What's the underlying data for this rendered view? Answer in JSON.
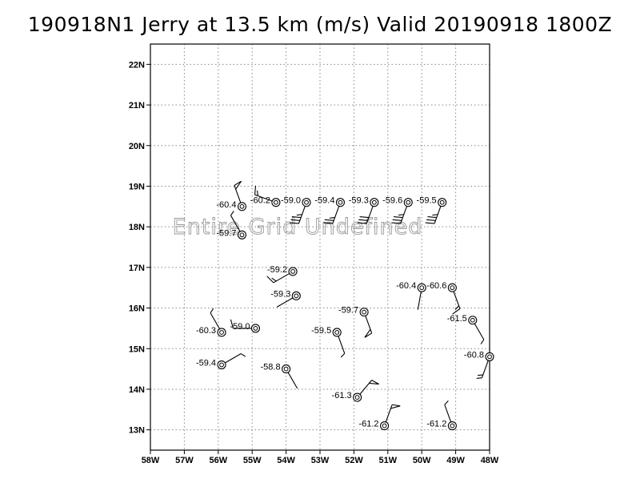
{
  "title": "190918N1 Jerry at 13.5 km (m/s) Valid 20190918 1800Z",
  "watermark": "Entire Grid Undefined",
  "chart_data": {
    "type": "scatter",
    "subtype": "wind-barb-station-plot",
    "x_ticks": [
      "58W",
      "57W",
      "56W",
      "55W",
      "54W",
      "53W",
      "52W",
      "51W",
      "50W",
      "49W",
      "48W"
    ],
    "y_ticks": [
      "13N",
      "14N",
      "15N",
      "16N",
      "17N",
      "18N",
      "19N",
      "20N",
      "21N",
      "22N"
    ],
    "xlim": [
      -58,
      -48
    ],
    "ylim": [
      12.5,
      22.5
    ],
    "grid": true,
    "points": [
      {
        "lon": -55.3,
        "lat": 18.5,
        "label": "-60.4",
        "dir": 340,
        "barbs": [
          "flag"
        ]
      },
      {
        "lon": -54.3,
        "lat": 18.6,
        "label": "-60.2",
        "dir": 290,
        "barbs": [
          "full",
          "half"
        ]
      },
      {
        "lon": -53.4,
        "lat": 18.6,
        "label": "-59.0",
        "dir": 200,
        "barbs": [
          "full",
          "full",
          "full",
          "half"
        ]
      },
      {
        "lon": -52.4,
        "lat": 18.6,
        "label": "-59.4",
        "dir": 200,
        "barbs": [
          "full",
          "full",
          "half"
        ]
      },
      {
        "lon": -51.4,
        "lat": 18.6,
        "label": "-59.3",
        "dir": 200,
        "barbs": [
          "full",
          "full",
          "full"
        ]
      },
      {
        "lon": -50.4,
        "lat": 18.6,
        "label": "-59.6",
        "dir": 200,
        "barbs": [
          "full",
          "full",
          "full",
          "half"
        ]
      },
      {
        "lon": -49.4,
        "lat": 18.6,
        "label": "-59.5",
        "dir": 200,
        "barbs": [
          "full",
          "full",
          "full",
          "half"
        ]
      },
      {
        "lon": -55.3,
        "lat": 17.8,
        "label": "-59.7",
        "dir": 330,
        "barbs": [
          "half"
        ]
      },
      {
        "lon": -53.8,
        "lat": 16.9,
        "label": "-59.2",
        "dir": 240,
        "barbs": [
          "full",
          "half"
        ]
      },
      {
        "lon": -53.7,
        "lat": 16.3,
        "label": "-59.3",
        "dir": 240,
        "barbs": []
      },
      {
        "lon": -51.7,
        "lat": 15.9,
        "label": "-59.7",
        "dir": 160,
        "barbs": [
          "flag"
        ]
      },
      {
        "lon": -50.0,
        "lat": 16.5,
        "label": "-60.4",
        "dir": 190,
        "barbs": []
      },
      {
        "lon": -49.1,
        "lat": 16.5,
        "label": "-60.6",
        "dir": 160,
        "barbs": [
          "full",
          "half"
        ]
      },
      {
        "lon": -48.5,
        "lat": 15.7,
        "label": "-61.5",
        "dir": 150,
        "barbs": [
          "half"
        ]
      },
      {
        "lon": -48.0,
        "lat": 14.8,
        "label": "-60.8",
        "dir": 200,
        "barbs": [
          "half",
          "half"
        ]
      },
      {
        "lon": -52.5,
        "lat": 15.4,
        "label": "-59.5",
        "dir": 160,
        "barbs": [
          "half"
        ]
      },
      {
        "lon": -55.9,
        "lat": 15.4,
        "label": "-60.3",
        "dir": 330,
        "barbs": [
          "half"
        ]
      },
      {
        "lon": -54.9,
        "lat": 15.5,
        "label": "-59.0",
        "dir": 270,
        "barbs": [
          "full"
        ]
      },
      {
        "lon": -55.9,
        "lat": 14.6,
        "label": "-59.4",
        "dir": 60,
        "barbs": [
          "half"
        ]
      },
      {
        "lon": -54.0,
        "lat": 14.5,
        "label": "-58.8",
        "dir": 150,
        "barbs": []
      },
      {
        "lon": -51.9,
        "lat": 13.8,
        "label": "-61.3",
        "dir": 40,
        "barbs": [
          "flag"
        ]
      },
      {
        "lon": -51.1,
        "lat": 13.1,
        "label": "-61.2",
        "dir": 20,
        "barbs": [
          "flag"
        ]
      },
      {
        "lon": -49.1,
        "lat": 13.1,
        "label": "-61.2",
        "dir": 340,
        "barbs": [
          "half"
        ]
      }
    ]
  }
}
